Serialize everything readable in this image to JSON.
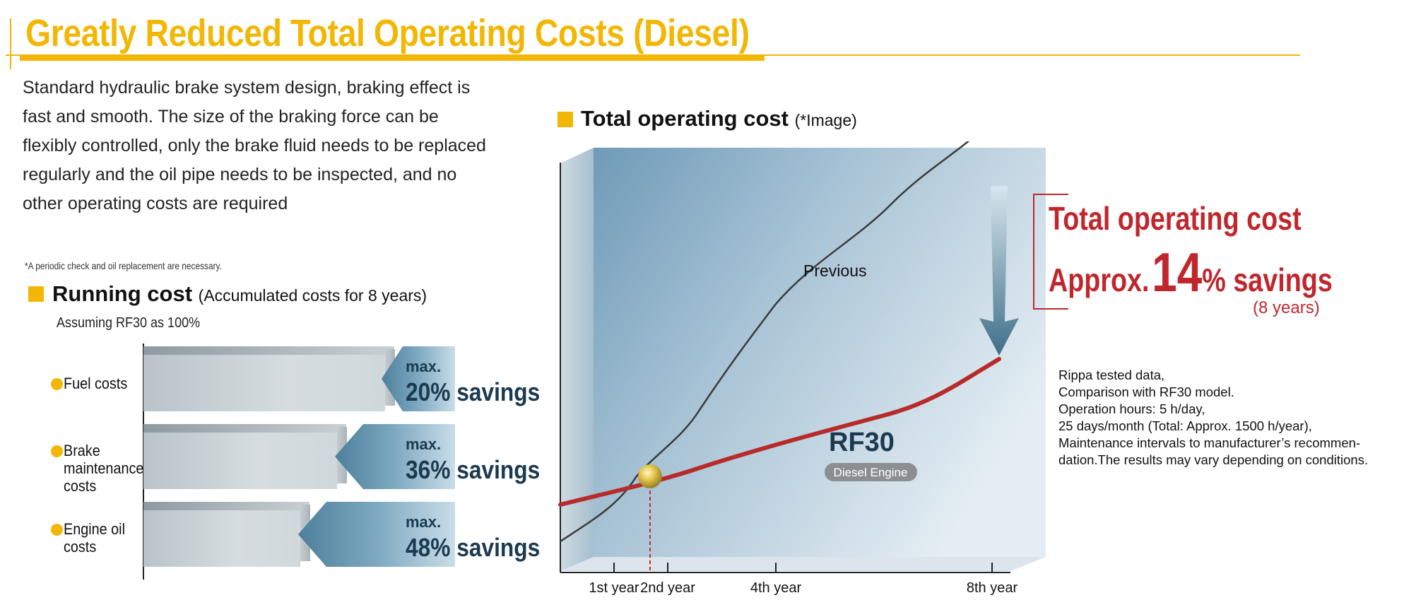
{
  "header": {
    "title": "Greatly Reduced Total Operating Costs (Diesel)"
  },
  "intro": {
    "lines": [
      "Standard hydraulic brake system design, braking effect is",
      "fast and smooth. The size of the braking force can be",
      "flexibly controlled, only the brake fluid needs to be replaced",
      "regularly and the oil pipe needs to be inspected, and no",
      "other operating costs are required"
    ]
  },
  "footnote": "*A periodic check and oil replacement are necessary.",
  "running_cost": {
    "title": "Running cost",
    "subtitle": "(Accumulated costs for 8 years)",
    "assumption": "Assuming RF30 as 100%",
    "items": [
      {
        "label_lines": [
          "Fuel costs"
        ],
        "max_label": "max.",
        "percent": "20%",
        "savings_word": "savings",
        "savings_fraction": 0.2
      },
      {
        "label_lines": [
          "Brake",
          "maintenance",
          "costs"
        ],
        "max_label": "max.",
        "percent": "36%",
        "savings_word": "savings",
        "savings_fraction": 0.36
      },
      {
        "label_lines": [
          "Engine oil",
          "costs"
        ],
        "max_label": "max.",
        "percent": "48%",
        "savings_word": "savings",
        "savings_fraction": 0.48
      }
    ]
  },
  "total_cost": {
    "title": "Total operating cost",
    "subtitle": "(*Image)",
    "previous_label": "Previous",
    "rf30_label": "RF30",
    "rf30_sublabel": "Diesel Engine",
    "x_ticks": [
      "1st year",
      "2nd year",
      "4th year",
      "8th year"
    ]
  },
  "callout": {
    "line1": "Total operating cost",
    "approx": "Approx.",
    "number": "14",
    "suffix": "% savings",
    "years": "(8 years)"
  },
  "notes": [
    "Rippa tested data,",
    "Comparison with RF30 model.",
    "Operation hours: 5 h/day,",
    "25 days/month (Total: Approx. 1500 h/year),",
    "Maintenance intervals to manufacturer’s recommen-",
    "dation.The results may vary depending on conditions."
  ],
  "colors": {
    "accent": "#f2b705",
    "savings_red": "#c0272d",
    "navy": "#1b3a4f"
  }
}
